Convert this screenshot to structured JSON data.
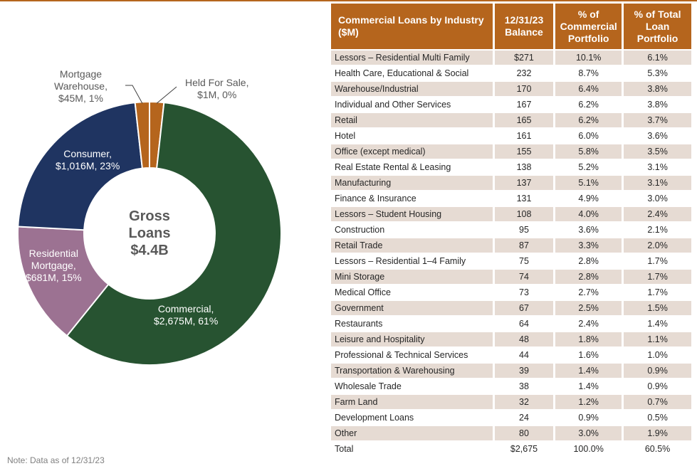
{
  "chart_data": [
    {
      "type": "pie",
      "style": "donut",
      "center_label": [
        "Gross",
        "Loans",
        "$4.4B"
      ],
      "slices": [
        {
          "name": "Held For Sale",
          "label": [
            "Held For Sale,",
            "$1M, 0%"
          ],
          "value": 1,
          "percent": 0,
          "color": "#b5651d"
        },
        {
          "name": "Commercial",
          "label": [
            "Commercial,",
            "$2,675M, 61%"
          ],
          "value": 2675,
          "percent": 61,
          "color": "#275331"
        },
        {
          "name": "Residential Mortgage",
          "label": [
            "Residential",
            "Mortgage,",
            "$681M, 15%"
          ],
          "value": 681,
          "percent": 15,
          "color": "#9c7292"
        },
        {
          "name": "Consumer",
          "label": [
            "Consumer,",
            "$1,016M, 23%"
          ],
          "value": 1016,
          "percent": 23,
          "color": "#1f3461"
        },
        {
          "name": "Mortgage Warehouse",
          "label": [
            "Mortgage",
            "Warehouse,",
            "$45M, 1%"
          ],
          "value": 45,
          "percent": 1,
          "color": "#b5651d"
        }
      ]
    },
    {
      "type": "table",
      "columns": [
        "Commercial Loans by Industry ($M)",
        "12/31/23 Balance",
        "% of Commercial Portfolio",
        "% of Total Loan Portfolio"
      ],
      "rows": [
        [
          "Lessors – Residential Multi Family",
          "$271",
          "10.1%",
          "6.1%"
        ],
        [
          "Health Care, Educational & Social",
          "232",
          "8.7%",
          "5.3%"
        ],
        [
          "Warehouse/Industrial",
          "170",
          "6.4%",
          "3.8%"
        ],
        [
          "Individual and Other Services",
          "167",
          "6.2%",
          "3.8%"
        ],
        [
          "Retail",
          "165",
          "6.2%",
          "3.7%"
        ],
        [
          "Hotel",
          "161",
          "6.0%",
          "3.6%"
        ],
        [
          "Office (except medical)",
          "155",
          "5.8%",
          "3.5%"
        ],
        [
          "Real Estate Rental & Leasing",
          "138",
          "5.2%",
          "3.1%"
        ],
        [
          "Manufacturing",
          "137",
          "5.1%",
          "3.1%"
        ],
        [
          "Finance & Insurance",
          "131",
          "4.9%",
          "3.0%"
        ],
        [
          "Lessors – Student Housing",
          "108",
          "4.0%",
          "2.4%"
        ],
        [
          "Construction",
          "95",
          "3.6%",
          "2.1%"
        ],
        [
          "Retail Trade",
          "87",
          "3.3%",
          "2.0%"
        ],
        [
          "Lessors – Residential 1–4 Family",
          "75",
          "2.8%",
          "1.7%"
        ],
        [
          "Mini Storage",
          "74",
          "2.8%",
          "1.7%"
        ],
        [
          "Medical Office",
          "73",
          "2.7%",
          "1.7%"
        ],
        [
          "Government",
          "67",
          "2.5%",
          "1.5%"
        ],
        [
          "Restaurants",
          "64",
          "2.4%",
          "1.4%"
        ],
        [
          "Leisure and Hospitality",
          "48",
          "1.8%",
          "1.1%"
        ],
        [
          "Professional & Technical Services",
          "44",
          "1.6%",
          "1.0%"
        ],
        [
          "Transportation & Warehousing",
          "39",
          "1.4%",
          "0.9%"
        ],
        [
          "Wholesale Trade",
          "38",
          "1.4%",
          "0.9%"
        ],
        [
          "Farm Land",
          "32",
          "1.2%",
          "0.7%"
        ],
        [
          "Development Loans",
          "24",
          "0.9%",
          "0.5%"
        ],
        [
          "Other",
          "80",
          "3.0%",
          "1.9%"
        ]
      ],
      "total": [
        "Total",
        "$2,675",
        "100.0%",
        "60.5%"
      ]
    }
  ],
  "note": "Note: Data as of 12/31/23"
}
